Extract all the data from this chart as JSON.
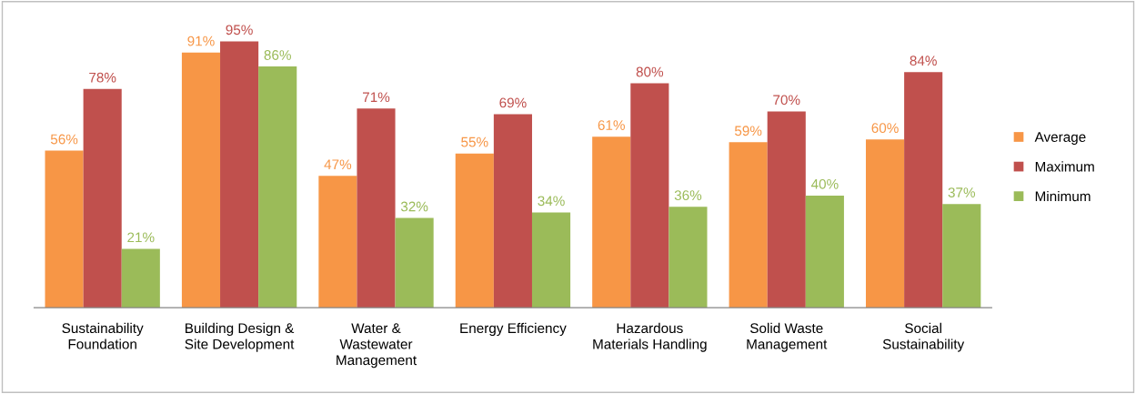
{
  "chart_data": {
    "type": "bar",
    "categories": [
      "Sustainability\nFoundation",
      "Building Design &\nSite Development",
      "Water &\nWastewater\nManagement",
      "Energy Efficiency",
      "Hazardous\nMaterials Handling",
      "Solid Waste\nManagement",
      "Social\nSustainability"
    ],
    "series": [
      {
        "name": "Average",
        "color": "#f79646",
        "values": [
          56,
          91,
          47,
          55,
          61,
          59,
          60
        ],
        "value_labels": [
          "56%",
          "91%",
          "47%",
          "55%",
          "61%",
          "59%",
          "60%"
        ]
      },
      {
        "name": "Maximum",
        "color": "#c0504d",
        "values": [
          78,
          95,
          71,
          69,
          80,
          70,
          84
        ],
        "value_labels": [
          "78%",
          "95%",
          "71%",
          "69%",
          "80%",
          "70%",
          "84%"
        ]
      },
      {
        "name": "Minimum",
        "color": "#9bbb59",
        "values": [
          21,
          86,
          32,
          34,
          36,
          40,
          37
        ],
        "value_labels": [
          "21%",
          "86%",
          "32%",
          "34%",
          "36%",
          "40%",
          "37%"
        ]
      }
    ],
    "legend": "right"
  }
}
